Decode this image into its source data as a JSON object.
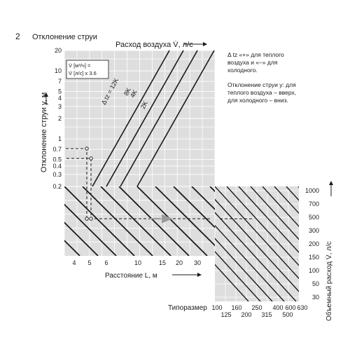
{
  "header": {
    "number": "2",
    "title": "Отклонение струи"
  },
  "chart_data": [
    {
      "type": "line",
      "name_ref": "deflection",
      "xlabel": "Расход воздуха V̇, л/с",
      "ylabel": "Отклонение струи y, м",
      "xscale": "log",
      "yscale": "log",
      "ylim": [
        0.2,
        20
      ],
      "y_ticks": [
        "20",
        "10",
        "7",
        "5",
        "4",
        "3",
        "2",
        "1",
        "0.7",
        "0.5",
        "0.4",
        "0.3",
        "0.2"
      ],
      "conversion_note": [
        "V̇ [м³/ч] =",
        "V̇ [л/с] x 3.6"
      ],
      "series_labels": [
        {
          "label": "Δ tz = 12K",
          "y_at_bottom": 0.2,
          "y_at_top": 20
        },
        {
          "label": "8K",
          "y_at_bottom": 0.2,
          "y_at_top": 20
        },
        {
          "label": "4K",
          "y_at_bottom": 0.2,
          "y_at_top": 20
        },
        {
          "label": "2K",
          "y_at_bottom": 0.2,
          "y_at_top": 20
        }
      ]
    },
    {
      "type": "line",
      "name_ref": "distance",
      "xlabel": "Расстояние L, м",
      "x_ticks": [
        "4",
        "5",
        "6",
        "10",
        "15",
        "20",
        "30"
      ]
    },
    {
      "type": "line",
      "name_ref": "flow",
      "xlabel": "Типоразмер",
      "ylabel": "Объемный расход V̇, л/с",
      "x_ticks_top": [
        "100",
        "160",
        "250",
        "400",
        "630"
      ],
      "x_ticks_bottom": [
        "125",
        "200",
        "315",
        "500"
      ],
      "x_tick_extra": "600",
      "y_ticks": [
        "1000",
        "700",
        "500",
        "300",
        "200",
        "150",
        "100",
        "50",
        "30"
      ]
    }
  ],
  "notes": {
    "line1": "Δ tz «+» для теплого",
    "line2": "воздуха и «–» для",
    "line3": "холодного.",
    "line4": "Отклонение струи y: для",
    "line5": "теплого воздуха – вверх,",
    "line6": "для холодного – вниз."
  },
  "colors": {
    "panel": "#dedede",
    "grid": "#ffffff",
    "line": "#1a1a1a",
    "arrow": "#9a9a9a"
  }
}
